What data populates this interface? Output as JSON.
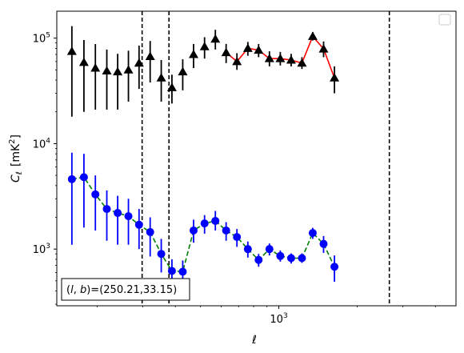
{
  "chart_data": {
    "type": "scatter",
    "xscale": "log",
    "yscale": "log",
    "xlim": [
      140,
      4800
    ],
    "ylim": [
      290,
      180000
    ],
    "xlabel": "ℓ",
    "ylabel_main": "C",
    "ylabel_sub": "ℓ",
    "ylabel_unit": "[mK",
    "ylabel_unit_sup": "2",
    "ylabel_unit_end": "]",
    "x_major_ticks": [
      {
        "value": 1000,
        "base": "10",
        "exp": "3"
      }
    ],
    "y_major_ticks": [
      {
        "value": 1000,
        "base": "10",
        "exp": "3"
      },
      {
        "value": 10000,
        "base": "10",
        "exp": "4"
      },
      {
        "value": 100000,
        "base": "10",
        "exp": "5"
      }
    ],
    "vlines": [
      298,
      378,
      2660
    ],
    "annotation": "(l, b)=(250.21,33.15)",
    "annotation_parts": {
      "pre": "(",
      "l": "l",
      "comma": ", ",
      "b": "b",
      "post": ")=(250.21,33.15)"
    },
    "legend": {
      "placement": "upper-right",
      "entries": []
    },
    "grid": false,
    "series": [
      {
        "marker": "triangle",
        "marker_color": "#000000",
        "errorbar_color": "#000000",
        "line_color": "#ff0000",
        "line_style": "solid",
        "line_start_index": 14,
        "points": [
          {
            "x": 160,
            "y": 75000,
            "lo": 18000,
            "hi": 130000
          },
          {
            "x": 178,
            "y": 59000,
            "lo": 20000,
            "hi": 96000
          },
          {
            "x": 197,
            "y": 52000,
            "lo": 21000,
            "hi": 88000
          },
          {
            "x": 218,
            "y": 49000,
            "lo": 21000,
            "hi": 78000
          },
          {
            "x": 240,
            "y": 48000,
            "lo": 21000,
            "hi": 71000
          },
          {
            "x": 264,
            "y": 50000,
            "lo": 25000,
            "hi": 76000
          },
          {
            "x": 290,
            "y": 58000,
            "lo": 33000,
            "hi": 85000
          },
          {
            "x": 320,
            "y": 67000,
            "lo": 38000,
            "hi": 94000
          },
          {
            "x": 353,
            "y": 42000,
            "lo": 25000,
            "hi": 62000
          },
          {
            "x": 388,
            "y": 34000,
            "lo": 24000,
            "hi": 45000
          },
          {
            "x": 427,
            "y": 48000,
            "lo": 32000,
            "hi": 63000
          },
          {
            "x": 470,
            "y": 70000,
            "lo": 52000,
            "hi": 88000
          },
          {
            "x": 518,
            "y": 83000,
            "lo": 64000,
            "hi": 102000
          },
          {
            "x": 570,
            "y": 98000,
            "lo": 78000,
            "hi": 120000
          },
          {
            "x": 627,
            "y": 73000,
            "lo": 58000,
            "hi": 88000
          },
          {
            "x": 690,
            "y": 60000,
            "lo": 50000,
            "hi": 72000
          },
          {
            "x": 760,
            "y": 80000,
            "lo": 68000,
            "hi": 92000
          },
          {
            "x": 836,
            "y": 77000,
            "lo": 66000,
            "hi": 88000
          },
          {
            "x": 920,
            "y": 64000,
            "lo": 54000,
            "hi": 75000
          },
          {
            "x": 1013,
            "y": 64000,
            "lo": 55000,
            "hi": 74000
          },
          {
            "x": 1115,
            "y": 62000,
            "lo": 54000,
            "hi": 71000
          },
          {
            "x": 1227,
            "y": 58000,
            "lo": 51000,
            "hi": 66000
          },
          {
            "x": 1350,
            "y": 104000,
            "lo": 95000,
            "hi": 114000
          },
          {
            "x": 1486,
            "y": 79000,
            "lo": 66000,
            "hi": 93000
          },
          {
            "x": 1636,
            "y": 42000,
            "lo": 30000,
            "hi": 54000
          }
        ]
      },
      {
        "marker": "circle",
        "marker_color": "#0000ff",
        "errorbar_color": "#0000ff",
        "line_color": "#008000",
        "line_style": "dashed",
        "line_start_index": 0,
        "points": [
          {
            "x": 160,
            "y": 4600,
            "lo": 1100,
            "hi": 8200
          },
          {
            "x": 178,
            "y": 4800,
            "lo": 1600,
            "hi": 8000
          },
          {
            "x": 197,
            "y": 3300,
            "lo": 1500,
            "hi": 5000
          },
          {
            "x": 218,
            "y": 2400,
            "lo": 1200,
            "hi": 3600
          },
          {
            "x": 240,
            "y": 2200,
            "lo": 1100,
            "hi": 3200
          },
          {
            "x": 264,
            "y": 2050,
            "lo": 1100,
            "hi": 3000
          },
          {
            "x": 290,
            "y": 1700,
            "lo": 1000,
            "hi": 2400
          },
          {
            "x": 320,
            "y": 1450,
            "lo": 850,
            "hi": 2000
          },
          {
            "x": 353,
            "y": 900,
            "lo": 600,
            "hi": 1250
          },
          {
            "x": 388,
            "y": 620,
            "lo": 430,
            "hi": 800
          },
          {
            "x": 427,
            "y": 610,
            "lo": 430,
            "hi": 780
          },
          {
            "x": 470,
            "y": 1500,
            "lo": 1150,
            "hi": 1900
          },
          {
            "x": 518,
            "y": 1750,
            "lo": 1400,
            "hi": 2100
          },
          {
            "x": 570,
            "y": 1850,
            "lo": 1500,
            "hi": 2300
          },
          {
            "x": 627,
            "y": 1500,
            "lo": 1200,
            "hi": 1800
          },
          {
            "x": 690,
            "y": 1300,
            "lo": 1050,
            "hi": 1550
          },
          {
            "x": 760,
            "y": 1000,
            "lo": 830,
            "hi": 1180
          },
          {
            "x": 836,
            "y": 790,
            "lo": 680,
            "hi": 900
          },
          {
            "x": 920,
            "y": 1000,
            "lo": 870,
            "hi": 1130
          },
          {
            "x": 1013,
            "y": 860,
            "lo": 760,
            "hi": 970
          },
          {
            "x": 1115,
            "y": 820,
            "lo": 730,
            "hi": 910
          },
          {
            "x": 1227,
            "y": 820,
            "lo": 740,
            "hi": 910
          },
          {
            "x": 1350,
            "y": 1420,
            "lo": 1250,
            "hi": 1590
          },
          {
            "x": 1486,
            "y": 1120,
            "lo": 920,
            "hi": 1330
          },
          {
            "x": 1636,
            "y": 680,
            "lo": 490,
            "hi": 870
          }
        ]
      }
    ]
  }
}
